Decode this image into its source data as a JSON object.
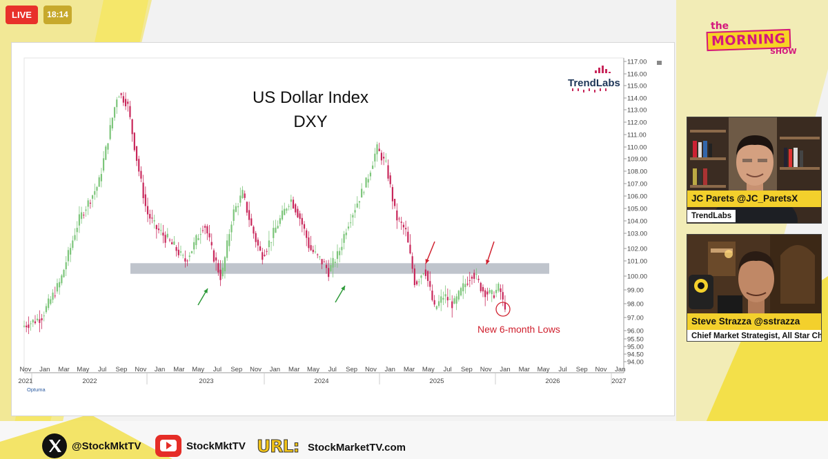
{
  "broadcast": {
    "live_label": "LIVE",
    "clock": "18:14",
    "show_logo": {
      "line1": "the",
      "line2": "MORNING",
      "line3": "SHOW"
    }
  },
  "hosts": [
    {
      "name": "JC Parets @JC_ParetsX",
      "subtitle": "TrendLabs"
    },
    {
      "name": "Steve Strazza @sstrazza",
      "subtitle": "Chief Market Strategist, All Star Charts"
    }
  ],
  "footer": {
    "x_handle": "@StockMktTV",
    "youtube_handle": "StockMktTV",
    "url_label": "URL:",
    "url": "StockMarketTV.com"
  },
  "chart_data": {
    "type": "candlestick",
    "title_line1": "US Dollar Index",
    "title_line2": "DXY",
    "watermark": "TrendLabs",
    "provider": "Optuma",
    "annotation": "New 6-month Lows",
    "y_axis": {
      "ticks": [
        117,
        116,
        115,
        114,
        113,
        112,
        111,
        110,
        109,
        108,
        107,
        106,
        105,
        104,
        103,
        102,
        101,
        100,
        99,
        98,
        97,
        96,
        95.5,
        95,
        94.5,
        94
      ],
      "tick_labels": [
        "117.00",
        "116.00",
        "115.00",
        "114.00",
        "113.00",
        "112.00",
        "111.00",
        "110.00",
        "109.00",
        "108.00",
        "107.00",
        "106.00",
        "105.00",
        "104.00",
        "103.00",
        "102.00",
        "101.00",
        "100.00",
        "99.00",
        "98.00",
        "97.00",
        "96.00",
        "95.50",
        "95.00",
        "94.50",
        "94.00"
      ],
      "range": [
        94,
        117
      ]
    },
    "x_axis": {
      "month_labels": [
        "Nov",
        "Jan",
        "Mar",
        "May",
        "Jul",
        "Sep",
        "Nov",
        "Jan",
        "Mar",
        "May",
        "Jul",
        "Sep",
        "Nov",
        "Jan",
        "Mar",
        "May",
        "Jul",
        "Sep",
        "Nov",
        "Jan",
        "Mar",
        "May",
        "Jul",
        "Sep",
        "Nov",
        "Jan",
        "Mar",
        "May",
        "Jul",
        "Sep",
        "Nov",
        "Jan"
      ],
      "year_labels": [
        "2021",
        "2022",
        "2023",
        "2024",
        "2025",
        "2026",
        "2027"
      ],
      "range": [
        "2021-11",
        "2027-01"
      ]
    },
    "support_zone": {
      "low": 100.15,
      "high": 100.85
    },
    "key_values": [
      {
        "date": "2021-11",
        "value": 96.0
      },
      {
        "date": "2022-09",
        "value": 114.7
      },
      {
        "date": "2023-07",
        "value": 99.8
      },
      {
        "date": "2024-09",
        "value": 100.2
      },
      {
        "date": "2025-01",
        "value": 110.0
      },
      {
        "date": "2025-05",
        "value": 100.8
      },
      {
        "date": "2025-11",
        "value": 100.3
      },
      {
        "date": "2026-01",
        "value": 97.9
      }
    ],
    "colors": {
      "up": "#7cc57a",
      "down": "#c8265a",
      "zone": "#bfc4cc",
      "green_arrow": "#2e9a3a",
      "red_arrow": "#d0202e"
    }
  }
}
